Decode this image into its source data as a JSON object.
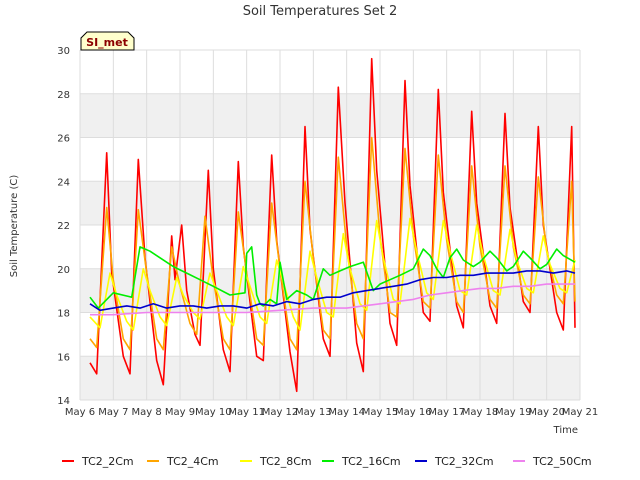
{
  "chart_data": {
    "type": "line",
    "title": "Soil Temperatures Set 2",
    "xlabel": "Time",
    "ylabel": "Soil Temperature (C)",
    "site_label": "SI_met",
    "ylim": [
      14,
      30
    ],
    "xlim": [
      0,
      15
    ],
    "yticks": [
      14,
      16,
      18,
      20,
      22,
      24,
      26,
      28,
      30
    ],
    "xtick_labels": [
      "May 6",
      "May 7",
      "May 8",
      "May 9",
      "May 10",
      "May 11",
      "May 12",
      "May 13",
      "May 14",
      "May 15",
      "May 16",
      "May 17",
      "May 18",
      "May 19",
      "May 20",
      "May 21"
    ],
    "grid": true,
    "legend_position": "bottom",
    "series": [
      {
        "name": "TC2_2Cm",
        "color": "#ff0000",
        "x": [
          0.3,
          0.5,
          0.8,
          0.95,
          1.3,
          1.5,
          1.75,
          1.95,
          2.3,
          2.5,
          2.75,
          2.85,
          3.05,
          3.2,
          3.45,
          3.6,
          3.85,
          4.0,
          4.3,
          4.5,
          4.75,
          4.9,
          5.3,
          5.5,
          5.75,
          5.9,
          6.3,
          6.5,
          6.75,
          6.9,
          7.3,
          7.5,
          7.75,
          7.95,
          8.3,
          8.5,
          8.75,
          8.9,
          9.3,
          9.5,
          9.75,
          9.9,
          10.3,
          10.5,
          10.75,
          10.9,
          11.3,
          11.5,
          11.75,
          11.9,
          12.3,
          12.5,
          12.75,
          12.9,
          13.3,
          13.5,
          13.75,
          13.9,
          14.3,
          14.5,
          14.75,
          14.85
        ],
        "y": [
          15.7,
          15.2,
          25.3,
          19.8,
          16.0,
          15.2,
          25.0,
          20.5,
          15.8,
          14.7,
          21.5,
          19.5,
          22.0,
          19.0,
          17.0,
          16.5,
          24.5,
          20.0,
          16.3,
          15.3,
          24.9,
          21.0,
          16.0,
          15.8,
          25.2,
          21.3,
          16.2,
          14.4,
          26.5,
          21.8,
          16.8,
          16.0,
          28.3,
          23.0,
          16.6,
          15.3,
          29.6,
          24.5,
          17.5,
          16.5,
          28.6,
          23.8,
          18.0,
          17.6,
          28.2,
          23.5,
          18.3,
          17.3,
          27.2,
          23.0,
          18.3,
          17.5,
          27.1,
          22.8,
          18.5,
          18.0,
          26.5,
          22.0,
          18.0,
          17.2,
          26.5,
          17.3
        ]
      },
      {
        "name": "TC2_4Cm",
        "color": "#ffa500",
        "x": [
          0.3,
          0.5,
          0.8,
          1.0,
          1.3,
          1.5,
          1.75,
          2.0,
          2.3,
          2.5,
          2.75,
          3.0,
          3.3,
          3.5,
          3.75,
          4.0,
          4.3,
          4.5,
          4.75,
          5.0,
          5.3,
          5.5,
          5.75,
          6.0,
          6.3,
          6.5,
          6.75,
          7.0,
          7.3,
          7.5,
          7.75,
          8.0,
          8.3,
          8.5,
          8.75,
          9.0,
          9.3,
          9.5,
          9.75,
          10.0,
          10.3,
          10.5,
          10.75,
          11.0,
          11.3,
          11.5,
          11.75,
          12.0,
          12.3,
          12.5,
          12.75,
          13.0,
          13.3,
          13.5,
          13.75,
          14.0,
          14.3,
          14.5,
          14.75,
          14.85
        ],
        "y": [
          16.8,
          16.4,
          22.8,
          19.5,
          16.8,
          16.3,
          22.7,
          19.8,
          16.8,
          16.3,
          21.0,
          19.2,
          17.5,
          17.0,
          22.4,
          19.5,
          16.8,
          16.3,
          22.6,
          19.8,
          16.8,
          16.5,
          23.0,
          20.0,
          16.8,
          16.3,
          24.0,
          20.5,
          17.2,
          16.8,
          25.1,
          21.0,
          17.5,
          16.8,
          26.0,
          21.5,
          18.0,
          17.8,
          25.5,
          21.5,
          18.5,
          18.2,
          25.2,
          21.3,
          18.5,
          18.0,
          24.7,
          21.0,
          18.6,
          18.2,
          24.7,
          21.0,
          18.8,
          18.4,
          24.2,
          20.8,
          18.8,
          18.4,
          24.0,
          18.5
        ]
      },
      {
        "name": "TC2_8Cm",
        "color": "#ffff00",
        "x": [
          0.3,
          0.6,
          0.9,
          1.1,
          1.4,
          1.6,
          1.9,
          2.1,
          2.4,
          2.6,
          2.9,
          3.1,
          3.4,
          3.6,
          3.9,
          4.1,
          4.4,
          4.6,
          4.9,
          5.1,
          5.4,
          5.6,
          5.9,
          6.1,
          6.4,
          6.6,
          6.9,
          7.1,
          7.4,
          7.6,
          7.9,
          8.1,
          8.4,
          8.6,
          8.9,
          9.1,
          9.4,
          9.6,
          9.9,
          10.1,
          10.4,
          10.6,
          10.9,
          11.1,
          11.4,
          11.6,
          11.9,
          12.1,
          12.4,
          12.6,
          12.9,
          13.1,
          13.4,
          13.6,
          13.9,
          14.1,
          14.4,
          14.6,
          14.85
        ],
        "y": [
          17.8,
          17.3,
          19.8,
          18.8,
          17.6,
          17.2,
          20.0,
          19.0,
          17.8,
          17.4,
          19.6,
          18.8,
          18.0,
          17.7,
          19.8,
          19.0,
          17.8,
          17.4,
          20.1,
          19.2,
          17.8,
          17.5,
          20.4,
          19.4,
          17.8,
          17.2,
          20.8,
          19.6,
          18.0,
          17.8,
          21.6,
          20.0,
          18.4,
          18.1,
          22.2,
          20.5,
          18.6,
          18.4,
          22.3,
          20.8,
          18.9,
          18.6,
          22.2,
          20.8,
          19.0,
          18.8,
          22.0,
          20.6,
          19.0,
          18.8,
          21.8,
          20.4,
          19.1,
          18.9,
          21.5,
          20.2,
          19.1,
          18.9,
          20.4
        ]
      },
      {
        "name": "TC2_16Cm",
        "color": "#00ee00",
        "x": [
          0.3,
          0.55,
          1.0,
          1.55,
          1.8,
          2.1,
          2.4,
          2.8,
          3.2,
          3.6,
          4.0,
          4.5,
          4.95,
          5.0,
          5.15,
          5.3,
          5.4,
          5.5,
          5.7,
          5.9,
          6.0,
          6.2,
          6.5,
          6.8,
          7.0,
          7.3,
          7.5,
          7.8,
          8.1,
          8.5,
          8.8,
          9.0,
          9.3,
          9.6,
          10.0,
          10.3,
          10.5,
          10.7,
          10.9,
          11.1,
          11.3,
          11.5,
          11.8,
          12.0,
          12.3,
          12.5,
          12.8,
          13.0,
          13.3,
          13.5,
          13.8,
          14.0,
          14.3,
          14.5,
          14.85
        ],
        "y": [
          18.7,
          18.2,
          18.9,
          18.7,
          21.0,
          20.8,
          20.5,
          20.1,
          19.8,
          19.5,
          19.2,
          18.8,
          18.9,
          20.7,
          21.0,
          18.8,
          18.4,
          18.3,
          18.6,
          18.4,
          20.3,
          18.6,
          19.0,
          18.8,
          18.6,
          20.0,
          19.7,
          19.9,
          20.1,
          20.3,
          19.0,
          19.3,
          19.5,
          19.7,
          20.0,
          20.9,
          20.6,
          20.0,
          19.6,
          20.5,
          20.9,
          20.4,
          20.1,
          20.3,
          20.8,
          20.5,
          19.9,
          20.1,
          20.8,
          20.5,
          20.0,
          20.2,
          20.9,
          20.6,
          20.3
        ]
      },
      {
        "name": "TC2_32Cm",
        "color": "#0000cc",
        "x": [
          0.3,
          0.6,
          1.0,
          1.4,
          1.8,
          2.2,
          2.6,
          3.0,
          3.4,
          3.8,
          4.2,
          4.6,
          5.0,
          5.4,
          5.8,
          6.2,
          6.6,
          7.0,
          7.4,
          7.8,
          8.2,
          8.6,
          9.0,
          9.4,
          9.8,
          10.2,
          10.6,
          11.0,
          11.4,
          11.8,
          12.2,
          12.6,
          13.0,
          13.4,
          13.8,
          14.2,
          14.6,
          14.85
        ],
        "y": [
          18.4,
          18.1,
          18.2,
          18.3,
          18.2,
          18.4,
          18.2,
          18.3,
          18.3,
          18.2,
          18.3,
          18.3,
          18.2,
          18.4,
          18.3,
          18.5,
          18.4,
          18.6,
          18.7,
          18.7,
          18.9,
          19.0,
          19.1,
          19.2,
          19.3,
          19.5,
          19.6,
          19.6,
          19.7,
          19.7,
          19.8,
          19.8,
          19.8,
          19.9,
          19.9,
          19.8,
          19.9,
          19.8
        ]
      },
      {
        "name": "TC2_50Cm",
        "color": "#ee82ee",
        "x": [
          0.3,
          1.0,
          2.0,
          3.0,
          4.0,
          5.0,
          6.0,
          7.0,
          8.0,
          8.5,
          9.0,
          9.5,
          10.0,
          10.5,
          11.0,
          11.5,
          12.0,
          12.5,
          13.0,
          13.5,
          14.0,
          14.5,
          14.85
        ],
        "y": [
          17.9,
          17.9,
          18.0,
          18.0,
          18.0,
          18.0,
          18.1,
          18.2,
          18.2,
          18.3,
          18.4,
          18.5,
          18.6,
          18.8,
          18.9,
          19.0,
          19.1,
          19.1,
          19.2,
          19.2,
          19.3,
          19.3,
          19.3
        ]
      }
    ]
  }
}
